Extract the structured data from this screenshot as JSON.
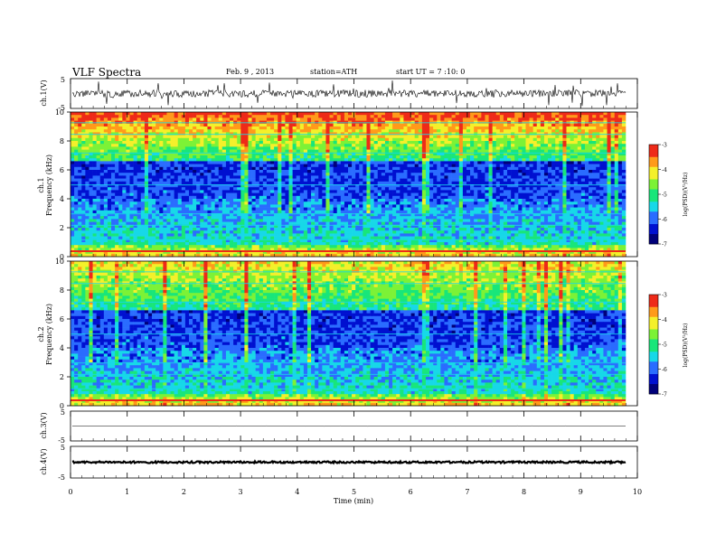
{
  "header": {
    "title": "VLF Spectra",
    "date": "Feb. 9 , 2013",
    "station": "station=ATH",
    "start": "start UT = 7 :10: 0"
  },
  "chart_data": [
    {
      "type": "line",
      "ylabel": "ch.1(V)",
      "ylim": [
        -5,
        5
      ],
      "yticks": [
        "5",
        "-5"
      ]
    },
    {
      "type": "heatmap",
      "ylabel_channel": "ch.1",
      "ylabel": "Frequency (kHz)",
      "ylim": [
        0,
        10
      ],
      "yticks": [
        "0",
        "2",
        "4",
        "6",
        "8",
        "10"
      ],
      "colorbar": {
        "label": "log(PSD)(V²/Hz)",
        "ticks": [
          "-3",
          "-4",
          "-5",
          "-6",
          "-7"
        ],
        "range": [
          -7,
          -3
        ]
      }
    },
    {
      "type": "heatmap",
      "ylabel_channel": "ch.2",
      "ylabel": "Frequency (kHz)",
      "ylim": [
        0,
        10
      ],
      "yticks": [
        "0",
        "2",
        "4",
        "6",
        "8",
        "10"
      ],
      "colorbar": {
        "label": "log(PSD)(V²/Hz)",
        "ticks": [
          "-3",
          "-4",
          "-5",
          "-6",
          "-7"
        ],
        "range": [
          -7,
          -3
        ]
      }
    },
    {
      "type": "line",
      "ylabel": "ch.3(V)",
      "ylim": [
        -5,
        5
      ],
      "yticks": [
        "5",
        "-5"
      ]
    },
    {
      "type": "line",
      "ylabel": "ch.4(V)",
      "ylim": [
        -5,
        5
      ],
      "yticks": [
        "5",
        "-5"
      ]
    }
  ],
  "xaxis": {
    "label": "Time (min)",
    "xlim": [
      0,
      10
    ],
    "ticks": [
      "0",
      "1",
      "2",
      "3",
      "4",
      "5",
      "6",
      "7",
      "8",
      "9",
      "10"
    ]
  },
  "colors": {
    "scale": [
      "#00007a",
      "#0010d0",
      "#2a6cff",
      "#17d8e8",
      "#18e67a",
      "#7cf236",
      "#f4f02a",
      "#ff9a1a",
      "#ee2a18",
      "#ffe8e8"
    ]
  }
}
